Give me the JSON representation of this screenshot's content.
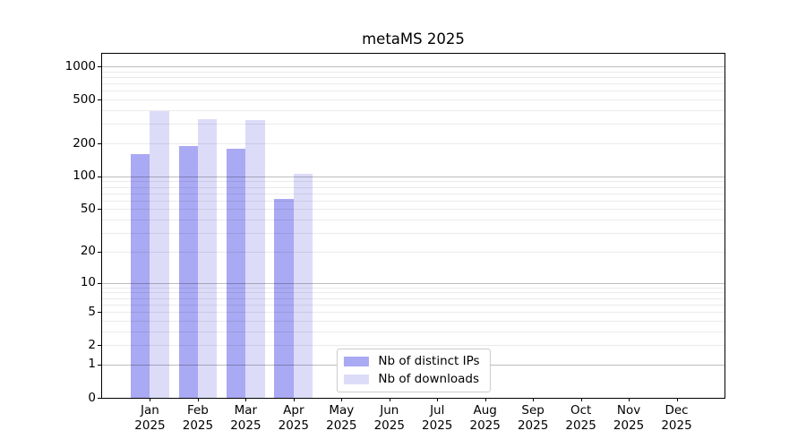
{
  "chart_data": {
    "type": "bar",
    "title": "metaMS 2025",
    "x_ticks": [
      {
        "month": "Jan",
        "year": "2025"
      },
      {
        "month": "Feb",
        "year": "2025"
      },
      {
        "month": "Mar",
        "year": "2025"
      },
      {
        "month": "Apr",
        "year": "2025"
      },
      {
        "month": "May",
        "year": "2025"
      },
      {
        "month": "Jun",
        "year": "2025"
      },
      {
        "month": "Jul",
        "year": "2025"
      },
      {
        "month": "Aug",
        "year": "2025"
      },
      {
        "month": "Sep",
        "year": "2025"
      },
      {
        "month": "Oct",
        "year": "2025"
      },
      {
        "month": "Nov",
        "year": "2025"
      },
      {
        "month": "Dec",
        "year": "2025"
      }
    ],
    "y_ticks": [
      0,
      1,
      2,
      5,
      10,
      20,
      50,
      100,
      200,
      500,
      1000
    ],
    "y_scale": "log1p",
    "y_range": [
      0,
      1300
    ],
    "grid": true,
    "series": [
      {
        "name": "Nb of distinct IPs",
        "color": "#a9a9f4",
        "values": [
          160,
          188,
          178,
          62,
          null,
          null,
          null,
          null,
          null,
          null,
          null,
          null
        ]
      },
      {
        "name": "Nb of downloads",
        "color": "#dcdcf9",
        "values": [
          392,
          334,
          328,
          105,
          null,
          null,
          null,
          null,
          null,
          null,
          null,
          null
        ]
      }
    ],
    "legend": {
      "position": "lower center",
      "items": [
        "Nb of distinct IPs",
        "Nb of downloads"
      ]
    },
    "colors": {
      "bar_distinct_ips": "#a9a9f4",
      "bar_downloads": "#dcdcf9",
      "major_grid": "#bdbdbd",
      "minor_grid": "#ebebeb",
      "axis_frame": "#000000",
      "legend_border": "#cccccc",
      "text": "#000000",
      "background": "#ffffff"
    }
  }
}
